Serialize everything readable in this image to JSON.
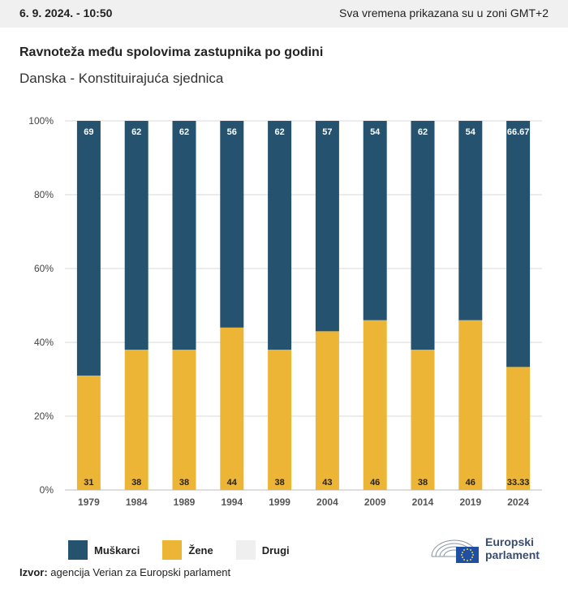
{
  "header": {
    "date": "6. 9. 2024. - 10:50",
    "timezone_note": "Sva vremena prikazana su u zoni GMT+2"
  },
  "colors": {
    "men": "#24526f",
    "women": "#ecb535",
    "other": "#efefef",
    "grid": "#d9d9d9",
    "topbar": "#f0f0f0"
  },
  "chart_data": {
    "type": "bar",
    "stacked": true,
    "title": "Ravnoteža među spolovima zastupnika po godini",
    "subtitle": "Danska - Konstituirajuća sjednica",
    "categories": [
      "1979",
      "1984",
      "1989",
      "1994",
      "1999",
      "2004",
      "2009",
      "2014",
      "2019",
      "2024"
    ],
    "series": [
      {
        "name": "Žene",
        "values": [
          31,
          38,
          38,
          44,
          38,
          43,
          46,
          38,
          46,
          33.33
        ],
        "labels": [
          "31",
          "38",
          "38",
          "44",
          "38",
          "43",
          "46",
          "38",
          "46",
          "33.33"
        ]
      },
      {
        "name": "Muškarci",
        "values": [
          69,
          62,
          62,
          56,
          62,
          57,
          54,
          62,
          54,
          66.67
        ],
        "labels": [
          "69",
          "62",
          "62",
          "56",
          "62",
          "57",
          "54",
          "62",
          "54",
          "66.67"
        ]
      },
      {
        "name": "Drugi",
        "values": [
          0,
          0,
          0,
          0,
          0,
          0,
          0,
          0,
          0,
          0
        ]
      }
    ],
    "ylim": [
      0,
      100
    ],
    "yticks": [
      "0%",
      "20%",
      "40%",
      "60%",
      "80%",
      "100%"
    ],
    "grid": true,
    "legend_position": "bottom-left"
  },
  "legend": {
    "items": [
      {
        "label": "Muškarci",
        "color": "#24526f"
      },
      {
        "label": "Žene",
        "color": "#ecb535"
      },
      {
        "label": "Drugi",
        "color": "#efefef"
      }
    ]
  },
  "source": {
    "prefix": "Izvor:",
    "text": "agencija Verian za Europski parlament"
  },
  "logo": {
    "line1": "Europski",
    "line2": "parlament"
  }
}
